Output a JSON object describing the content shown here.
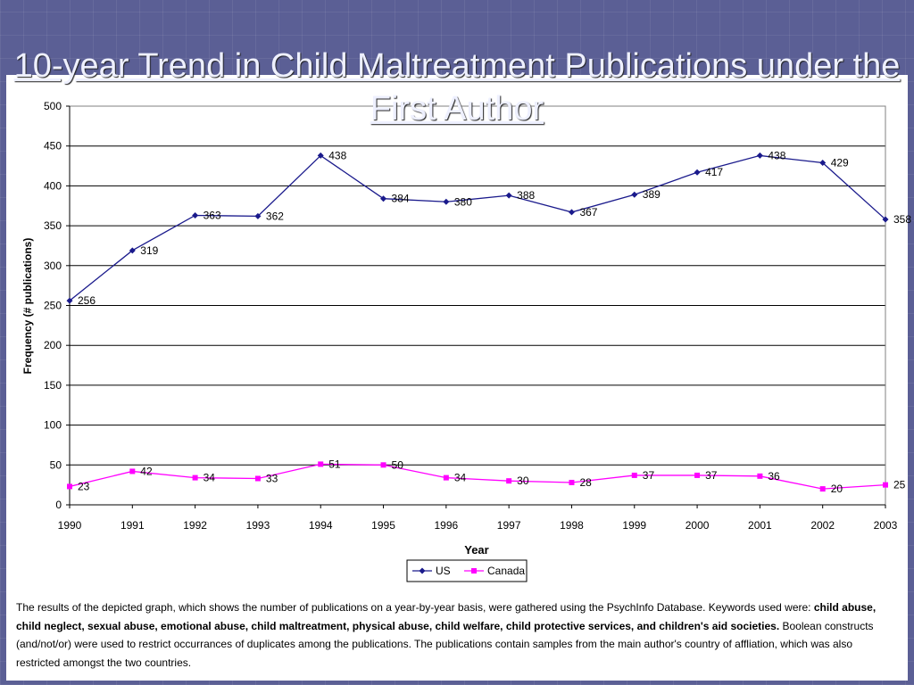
{
  "slide": {
    "title": "10-year Trend in Child Maltreatment Publications under the First Author"
  },
  "caption": {
    "part1": "The results of the depicted graph, which shows the number of publications on a year-by-year basis, were gathered using the PsychInfo Database.   Keywords used were: ",
    "keywords": "child abuse, child neglect, sexual abuse, emotional abuse, child maltreatment, physical abuse, child welfare, child protective services, and children's aid societies.",
    "part2": "  Boolean constructs (and/not/or) were used to restrict occurrances of duplicates among the publications.  The publications contain samples from the main author's country of affliation, which was also restricted amongst the two countries."
  },
  "chart_data": {
    "type": "line",
    "title": "",
    "xlabel": "Year",
    "ylabel": "Frequency (# publications)",
    "x": [
      "1990",
      "1991",
      "1992",
      "1993",
      "1994",
      "1995",
      "1996",
      "1997",
      "1998",
      "1999",
      "2000",
      "2001",
      "2002",
      "2003"
    ],
    "ylim": [
      0,
      500
    ],
    "yticks": [
      0,
      50,
      100,
      150,
      200,
      250,
      300,
      350,
      400,
      450,
      500
    ],
    "grid": true,
    "legend_position": "bottom",
    "series": [
      {
        "name": "US",
        "color": "#1a1a8c",
        "marker": "diamond",
        "values": [
          256,
          319,
          363,
          362,
          438,
          384,
          380,
          388,
          367,
          389,
          417,
          438,
          429,
          358
        ]
      },
      {
        "name": "Canada",
        "color": "#ff00ff",
        "marker": "square",
        "values": [
          23,
          42,
          34,
          33,
          51,
          50,
          34,
          30,
          28,
          37,
          37,
          36,
          20,
          25
        ]
      }
    ]
  }
}
